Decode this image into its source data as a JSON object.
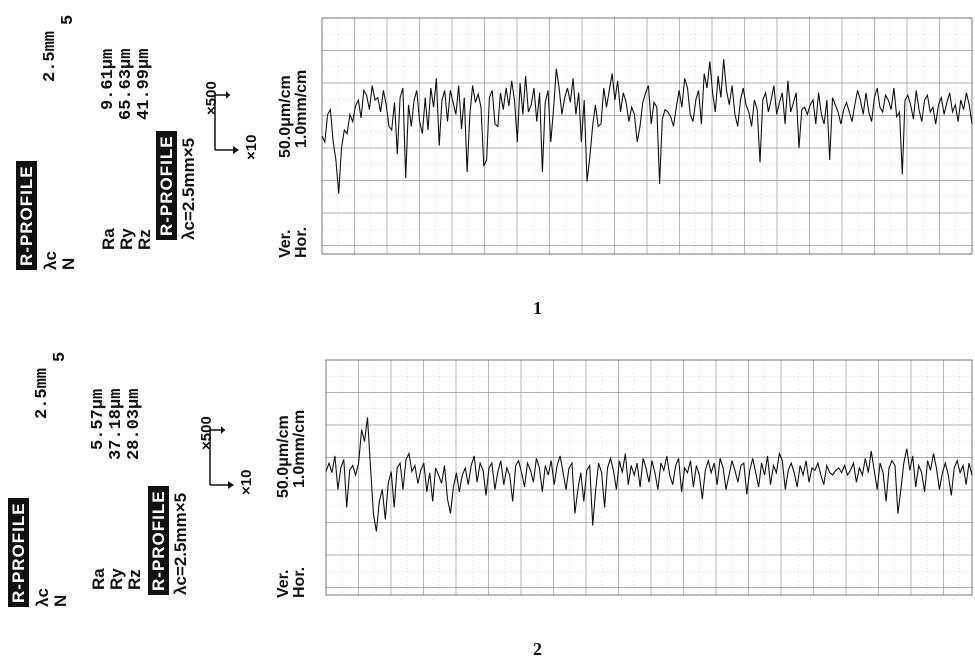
{
  "chart_data": [
    {
      "type": "line",
      "figure_label": "1",
      "badge_label": "R-PROFILE",
      "cutoff_label": "λc",
      "cutoff_value": "2.5mm",
      "n_label": "N",
      "n_value": "5",
      "params": [
        {
          "name": "Ra",
          "value": "9.61μm"
        },
        {
          "name": "Ry",
          "value": "65.63μm"
        },
        {
          "name": "Rz",
          "value": "41.99μm"
        }
      ],
      "badge2_label": "R-PROFILE",
      "badge2_sub": "λc=2.5mm×5",
      "mag_vertical": "×500",
      "mag_horizontal": "×10",
      "scale_ver_label": "Ver.",
      "scale_hor_label": "Hor.",
      "scale_ver_value": "50.0μm/cm",
      "scale_hor_value": "1.0mm/cm",
      "grid": true,
      "series": [
        {
          "values": [
            0,
            -5,
            18,
            22,
            -5,
            -20,
            -48,
            -10,
            5,
            2,
            18,
            12,
            25,
            30,
            15,
            38,
            34,
            22,
            42,
            30,
            32,
            20,
            38,
            26,
            8,
            5,
            28,
            -15,
            32,
            40,
            -35,
            26,
            8,
            30,
            38,
            12,
            2,
            32,
            5,
            40,
            24,
            48,
            -8,
            30,
            38,
            12,
            38,
            28,
            18,
            42,
            6,
            32,
            -30,
            18,
            42,
            28,
            35,
            24,
            -25,
            -20,
            32,
            38,
            10,
            8,
            36,
            22,
            40,
            25,
            46,
            30,
            -5,
            44,
            18,
            50,
            20,
            26,
            40,
            12,
            36,
            -30,
            28,
            38,
            -5,
            22,
            56,
            40,
            18,
            32,
            40,
            28,
            48,
            18,
            36,
            -5,
            30,
            -38,
            -18,
            8,
            26,
            8,
            10,
            40,
            24,
            38,
            52,
            30,
            46,
            20,
            36,
            28,
            12,
            24,
            18,
            -5,
            8,
            28,
            36,
            42,
            10,
            28,
            24,
            -40,
            14,
            22,
            20,
            16,
            8,
            24,
            38,
            24,
            48,
            40,
            18,
            12,
            30,
            38,
            10,
            52,
            40,
            62,
            36,
            20,
            50,
            32,
            64,
            38,
            26,
            42,
            18,
            8,
            30,
            40,
            26,
            20,
            8,
            30,
            22,
            -22,
            30,
            36,
            20,
            30,
            42,
            18,
            28,
            36,
            10,
            46,
            20,
            28,
            36,
            -10,
            22,
            24,
            18,
            26,
            30,
            10,
            36,
            18,
            10,
            30,
            -20,
            32,
            26,
            20,
            10,
            22,
            28,
            20,
            12,
            26,
            38,
            30,
            18,
            36,
            20,
            12,
            32,
            40,
            24,
            20,
            34,
            30,
            22,
            40,
            16,
            20,
            -32,
            30,
            34,
            26,
            14,
            38,
            22,
            12,
            30,
            34,
            20,
            24,
            10,
            26,
            32,
            18,
            28,
            36,
            20,
            26,
            12,
            30,
            22,
            36,
            26,
            10
          ]
        }
      ]
    },
    {
      "type": "line",
      "figure_label": "2",
      "badge_label": "R-PROFILE",
      "cutoff_label": "λc",
      "cutoff_value": "2.5mm",
      "n_label": "N",
      "n_value": "5",
      "params": [
        {
          "name": "Ra",
          "value": "5.57μm"
        },
        {
          "name": "Ry",
          "value": "37.18μm"
        },
        {
          "name": "Rz",
          "value": "28.03μm"
        }
      ],
      "badge2_label": "R-PROFILE",
      "badge2_sub": "λc=2.5mm×5",
      "mag_vertical": "×500",
      "mag_horizontal": "×10",
      "scale_ver_label": "Ver.",
      "scale_hor_label": "Hor.",
      "scale_ver_value": "50.0μm/cm",
      "scale_hor_value": "1.0mm/cm",
      "grid": true,
      "series": [
        {
          "values": [
            5,
            12,
            4,
            18,
            -10,
            8,
            15,
            -25,
            6,
            10,
            2,
            12,
            40,
            30,
            50,
            10,
            -30,
            -45,
            -20,
            -10,
            -35,
            -5,
            5,
            -25,
            8,
            12,
            -10,
            15,
            20,
            5,
            10,
            -5,
            6,
            12,
            -12,
            4,
            -20,
            8,
            2,
            -5,
            10,
            -18,
            -30,
            -8,
            4,
            -12,
            2,
            8,
            -6,
            10,
            18,
            -4,
            12,
            6,
            -15,
            8,
            12,
            -10,
            5,
            14,
            -6,
            8,
            2,
            -20,
            10,
            14,
            4,
            -8,
            12,
            6,
            -4,
            16,
            8,
            -12,
            10,
            2,
            14,
            -6,
            10,
            18,
            4,
            -10,
            8,
            12,
            -30,
            -10,
            4,
            -20,
            6,
            10,
            -40,
            -10,
            12,
            4,
            -25,
            8,
            16,
            6,
            -10,
            14,
            4,
            20,
            -6,
            10,
            2,
            12,
            -8,
            16,
            8,
            -4,
            14,
            4,
            -10,
            12,
            6,
            18,
            2,
            -6,
            10,
            16,
            -12,
            8,
            4,
            14,
            -8,
            10,
            2,
            -18,
            6,
            14,
            4,
            12,
            -6,
            16,
            8,
            -10,
            2,
            14,
            6,
            -4,
            10,
            12,
            -14,
            6,
            16,
            4,
            -8,
            12,
            2,
            18,
            -6,
            10,
            4,
            20,
            14,
            -10,
            6,
            12,
            4,
            -8,
            10,
            2,
            14,
            -4,
            8,
            6,
            12,
            2,
            -6,
            10,
            4,
            2,
            6,
            8,
            4,
            10,
            2,
            6,
            12,
            -4,
            8,
            2,
            16,
            4,
            22,
            6,
            -10,
            12,
            4,
            -20,
            8,
            14,
            10,
            -30,
            -10,
            12,
            24,
            6,
            18,
            -8,
            10,
            4,
            -12,
            14,
            6,
            20,
            8,
            -10,
            4,
            12,
            2,
            -15,
            8,
            14,
            4,
            10,
            -6,
            12,
            2
          ]
        }
      ]
    }
  ]
}
